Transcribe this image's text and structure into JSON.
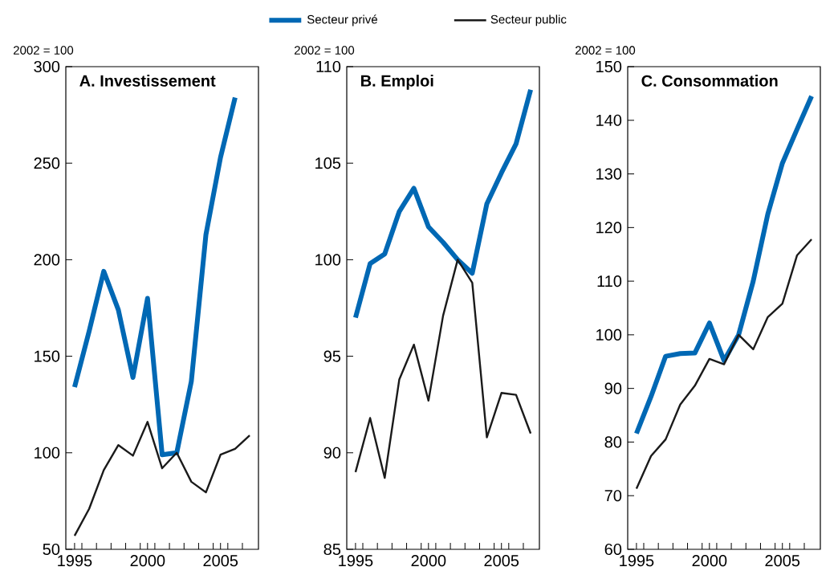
{
  "chart_data": [
    {
      "type": "line",
      "title": "A. Investissement",
      "ylabel": "2002 = 100",
      "legend": "top",
      "x": [
        1995,
        1996,
        1997,
        1998,
        1999,
        2000,
        2001,
        2002,
        2003,
        2004,
        2005,
        2006,
        2007
      ],
      "xlim": [
        1994.4,
        2007.6
      ],
      "ylim": [
        50,
        300
      ],
      "yticks": [
        50,
        100,
        150,
        200,
        250,
        300
      ],
      "xticks": [
        1995,
        2000,
        2005,
        {
          "value": 1995.5,
          "label": null
        },
        {
          "value": 1996.5,
          "label": null
        },
        {
          "value": 1997.5,
          "label": null
        },
        {
          "value": 1998.5,
          "label": null
        },
        {
          "value": 1999.5,
          "label": null
        },
        {
          "value": 2000.5,
          "label": null
        },
        {
          "value": 2001.5,
          "label": null
        },
        {
          "value": 2002.5,
          "label": null
        },
        {
          "value": 2003.5,
          "label": null
        },
        {
          "value": 2004.5,
          "label": null
        },
        {
          "value": 2005.5,
          "label": null
        },
        {
          "value": 2006.5,
          "label": null
        }
      ],
      "series": [
        {
          "name": "Secteur privé",
          "color": "#0068b4",
          "values": [
            134,
            163,
            194,
            174,
            139,
            180,
            99,
            100,
            137,
            213,
            253,
            284,
            null
          ]
        },
        {
          "name": "Secteur public",
          "color": "#1a1a1a",
          "values": [
            57,
            71,
            91,
            104,
            98.5,
            116,
            92,
            100,
            85,
            79.5,
            99,
            102,
            109
          ]
        }
      ]
    },
    {
      "type": "line",
      "title": "B. Emploi",
      "ylabel": "2002 = 100",
      "x": [
        1995,
        1996,
        1997,
        1998,
        1999,
        2000,
        2001,
        2002,
        2003,
        2004,
        2005,
        2006,
        2007
      ],
      "xlim": [
        1994.4,
        2007.6
      ],
      "ylim": [
        85,
        110
      ],
      "yticks": [
        85,
        90,
        95,
        100,
        105,
        110
      ],
      "xticks": [
        1995,
        2000,
        2005,
        {
          "value": 1995.5,
          "label": null
        },
        {
          "value": 1996.5,
          "label": null
        },
        {
          "value": 1997.5,
          "label": null
        },
        {
          "value": 1998.5,
          "label": null
        },
        {
          "value": 1999.5,
          "label": null
        },
        {
          "value": 2000.5,
          "label": null
        },
        {
          "value": 2001.5,
          "label": null
        },
        {
          "value": 2002.5,
          "label": null
        },
        {
          "value": 2003.5,
          "label": null
        },
        {
          "value": 2004.5,
          "label": null
        },
        {
          "value": 2005.5,
          "label": null
        },
        {
          "value": 2006.5,
          "label": null
        }
      ],
      "series": [
        {
          "color": "#0068b4",
          "values": [
            97,
            99.8,
            100.3,
            102.5,
            103.7,
            101.7,
            100.9,
            100,
            99.3,
            102.9,
            104.5,
            106,
            108.8
          ]
        },
        {
          "color": "#1a1a1a",
          "values": [
            89,
            91.8,
            88.7,
            93.8,
            95.6,
            92.7,
            97.1,
            100,
            98.8,
            90.8,
            93.1,
            93,
            91
          ]
        }
      ]
    },
    {
      "type": "line",
      "title": "C. Consommation",
      "ylabel": "2002 = 100",
      "x": [
        1995,
        1996,
        1997,
        1998,
        1999,
        2000,
        2001,
        2002,
        2003,
        2004,
        2005,
        2006,
        2007
      ],
      "xlim": [
        1994.4,
        2007.6
      ],
      "ylim": [
        60,
        150
      ],
      "yticks": [
        60,
        70,
        80,
        90,
        100,
        110,
        120,
        130,
        140,
        150
      ],
      "xticks": [
        1995,
        2000,
        2005,
        {
          "value": 1995.5,
          "label": null
        },
        {
          "value": 1996.5,
          "label": null
        },
        {
          "value": 1997.5,
          "label": null
        },
        {
          "value": 1998.5,
          "label": null
        },
        {
          "value": 1999.5,
          "label": null
        },
        {
          "value": 2000.5,
          "label": null
        },
        {
          "value": 2001.5,
          "label": null
        },
        {
          "value": 2002.5,
          "label": null
        },
        {
          "value": 2003.5,
          "label": null
        },
        {
          "value": 2004.5,
          "label": null
        },
        {
          "value": 2005.5,
          "label": null
        },
        {
          "value": 2006.5,
          "label": null
        }
      ],
      "series": [
        {
          "color": "#0068b4",
          "values": [
            81.6,
            88.5,
            96,
            96.5,
            96.6,
            102.2,
            95.2,
            100,
            110,
            122.5,
            132,
            138.3,
            144.5
          ]
        },
        {
          "color": "#1a1a1a",
          "values": [
            71.3,
            77.4,
            80.5,
            87,
            90.5,
            95.5,
            94.5,
            100,
            97.3,
            103.3,
            105.8,
            114.8,
            117.8
          ]
        }
      ]
    }
  ]
}
